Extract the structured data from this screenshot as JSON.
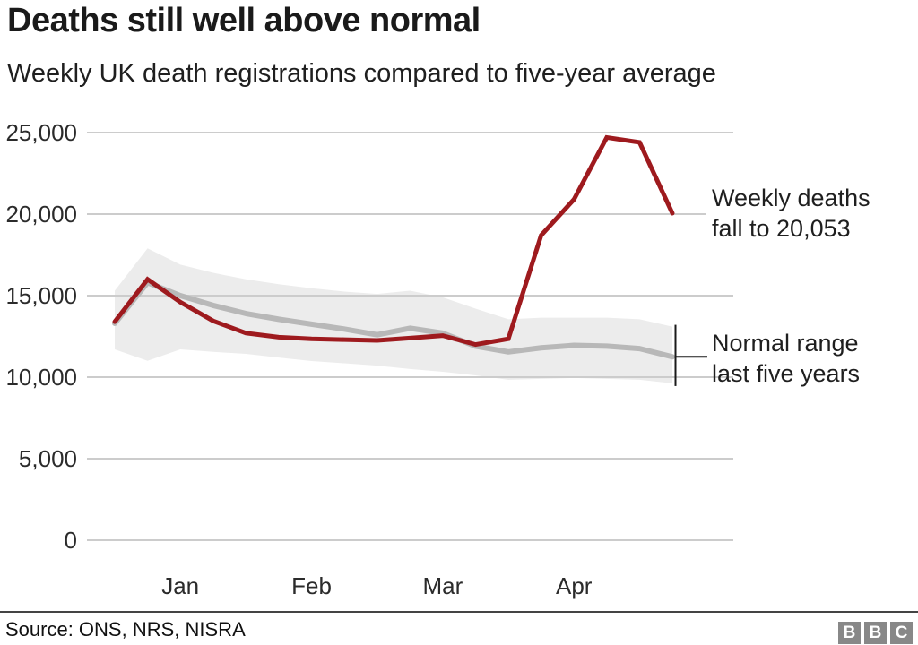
{
  "title": "Deaths still well above normal",
  "subtitle": "Weekly UK death registrations compared to five-year average",
  "source": "Source: ONS, NRS, NISRA",
  "bbc_logo": [
    "B",
    "B",
    "C"
  ],
  "annotations": {
    "weekly_deaths": [
      "Weekly deaths",
      "fall to 20,053"
    ],
    "normal_range": [
      "Normal range",
      "last five years"
    ]
  },
  "colors": {
    "deaths_line": "#9e1a1e",
    "average_line": "#b8b8b8",
    "range_band": "#ececec",
    "gridline": "#cccccc",
    "bracket": "#1a1a1a",
    "text": "#1f1f1f",
    "bbc_block": "#888888"
  },
  "chart_data": {
    "type": "line",
    "title": "Deaths still well above normal",
    "subtitle": "Weekly UK death registrations compared to five-year average",
    "xlabel": "",
    "ylabel": "",
    "x_unit": "week",
    "weeks": [
      1,
      2,
      3,
      4,
      5,
      6,
      7,
      8,
      9,
      10,
      11,
      12,
      13,
      14,
      15,
      16,
      17,
      18
    ],
    "series": [
      {
        "name": "Weekly deaths",
        "key": "deaths",
        "values": [
          13400,
          16000,
          14600,
          13450,
          12700,
          12450,
          12350,
          12300,
          12250,
          12400,
          12550,
          12000,
          12350,
          18700,
          20900,
          24700,
          24400,
          20053
        ]
      },
      {
        "name": "Five-year average",
        "key": "average",
        "values": [
          13300,
          15800,
          15000,
          14400,
          13900,
          13550,
          13250,
          12950,
          12600,
          13000,
          12700,
          11900,
          11550,
          11800,
          11950,
          11900,
          11750,
          11250
        ]
      },
      {
        "name": "Normal range upper",
        "key": "range_top",
        "values": [
          15300,
          17900,
          16900,
          16400,
          16000,
          15700,
          15450,
          15250,
          15100,
          15300,
          14900,
          14200,
          13550,
          13650,
          13650,
          13650,
          13550,
          13100
        ]
      },
      {
        "name": "Normal range lower",
        "key": "range_bottom",
        "values": [
          11700,
          11000,
          11700,
          11550,
          11430,
          11200,
          10990,
          10850,
          10710,
          10500,
          10330,
          10110,
          9840,
          9900,
          9950,
          9900,
          9840,
          9620
        ]
      }
    ],
    "y_ticks": [
      {
        "value": 25000,
        "label": "25,000"
      },
      {
        "value": 20000,
        "label": "20,000"
      },
      {
        "value": 15000,
        "label": "15,000"
      },
      {
        "value": 10000,
        "label": "10,000"
      },
      {
        "value": 5000,
        "label": "5,000"
      },
      {
        "value": 0,
        "label": "0"
      }
    ],
    "x_ticks": [
      {
        "index": 2,
        "label": "Jan"
      },
      {
        "index": 6,
        "label": "Feb"
      },
      {
        "index": 10,
        "label": "Mar"
      },
      {
        "index": 14,
        "label": "Apr"
      }
    ],
    "ylim": [
      0,
      25000
    ],
    "grid": true,
    "legend_position": "annotated-right",
    "last_value_label": "20,053"
  }
}
